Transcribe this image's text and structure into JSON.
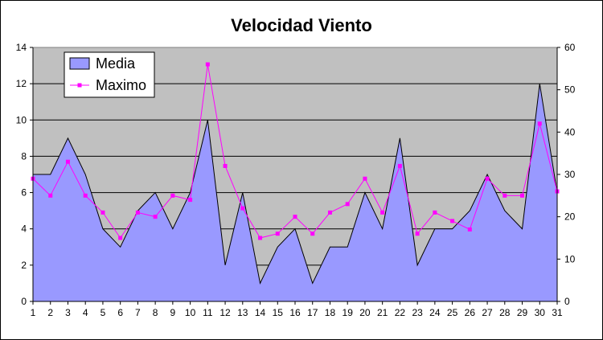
{
  "chart_data": {
    "type": "area",
    "title": "Velocidad Viento",
    "categories": [
      "1",
      "2",
      "3",
      "4",
      "5",
      "6",
      "7",
      "8",
      "9",
      "10",
      "11",
      "12",
      "13",
      "14",
      "15",
      "16",
      "17",
      "18",
      "19",
      "20",
      "21",
      "22",
      "23",
      "24",
      "25",
      "26",
      "27",
      "28",
      "29",
      "30",
      "31"
    ],
    "series": [
      {
        "name": "Media",
        "type": "area",
        "axis": "left",
        "color": "#9999FF",
        "values": [
          7,
          7,
          9,
          7,
          4,
          3,
          5,
          6,
          4,
          6,
          10,
          2,
          6,
          1,
          3,
          4,
          1,
          3,
          3,
          6,
          4,
          9,
          2,
          4,
          4,
          5,
          7,
          5,
          4,
          12,
          6
        ]
      },
      {
        "name": "Maximo",
        "type": "line",
        "axis": "right",
        "color": "#FF00FF",
        "values": [
          29,
          25,
          33,
          25,
          21,
          15,
          21,
          20,
          25,
          24,
          56,
          32,
          22,
          15,
          16,
          20,
          16,
          21,
          23,
          29,
          21,
          32,
          16,
          21,
          19,
          17,
          29,
          25,
          25,
          42,
          26
        ]
      }
    ],
    "y_left": {
      "min": 0,
      "max": 14,
      "ticks": [
        "0",
        "2",
        "4",
        "6",
        "8",
        "10",
        "12",
        "14"
      ]
    },
    "y_right": {
      "min": 0,
      "max": 60,
      "ticks": [
        "0",
        "10",
        "20",
        "30",
        "40",
        "50",
        "60"
      ]
    },
    "plot_background": "#C0C0C0",
    "grid": true,
    "legend": "top-left"
  }
}
